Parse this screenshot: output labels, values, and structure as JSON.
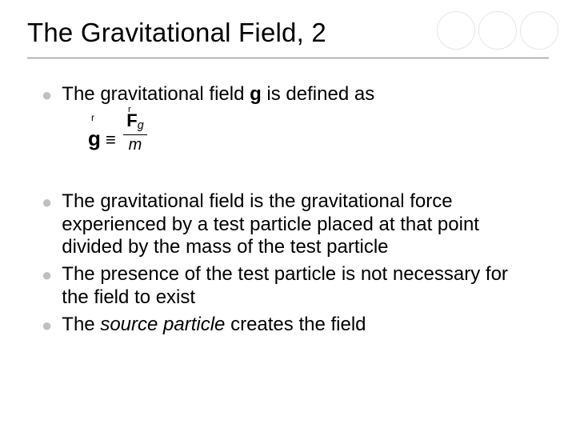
{
  "title": "The Gravitational Field, 2",
  "bullets": {
    "b1_pre": "The gravitational field ",
    "b1_sym": "g",
    "b1_post": " is defined as",
    "b2": "The gravitational field is the gravitational force experienced by a test particle placed at that point divided by the mass of the test particle",
    "b3": "The presence of the test particle is not necessary for the field to exist",
    "b4_pre": "The ",
    "b4_em": "source particle",
    "b4_post": " creates the field"
  },
  "equation": {
    "lhs_vec": "r",
    "lhs": "g",
    "op": "≡",
    "num_vec": "r",
    "num_F": "F",
    "num_sub": "g",
    "den": "m"
  },
  "style": {
    "bg": "#ffffff",
    "text": "#000000",
    "bullet_color": "#c0c0c0",
    "underline_color": "#808080",
    "title_fontsize": 33,
    "body_fontsize": 24,
    "circle_border": "#e6e6e6",
    "circle_fill": "#f2f2f2",
    "circle_count": 3,
    "circle_diameter": 48
  }
}
